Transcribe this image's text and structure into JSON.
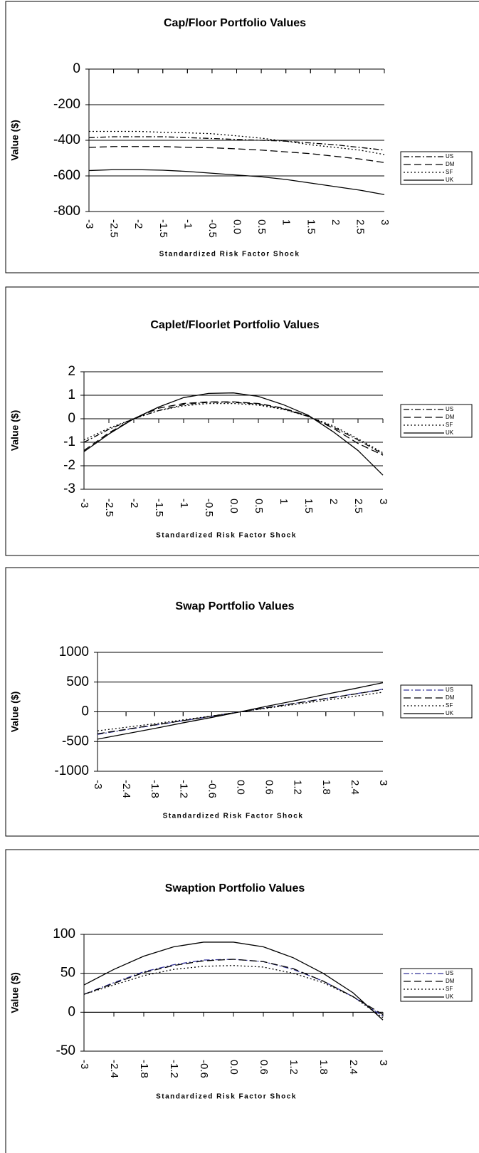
{
  "chart_data": [
    {
      "type": "line",
      "title": "Cap/Floor Portfolio Values",
      "x_label": "Standardized Risk Factor Shock",
      "y_label": "Value ($)",
      "x": [
        -3,
        -2.5,
        -2,
        -1.5,
        -1,
        -0.5,
        0,
        0.5,
        1,
        1.5,
        2,
        2.5,
        3
      ],
      "xlim": [
        -3,
        3
      ],
      "xticks": [
        -3,
        -2.5,
        -2,
        -1.5,
        -1,
        -0.5,
        {
          "value": 0,
          "label": "0.0"
        },
        0.5,
        1,
        1.5,
        2,
        2.5,
        3
      ],
      "ylim": [
        -800,
        0
      ],
      "yticks": [
        -800,
        -600,
        -400,
        -200,
        0
      ],
      "grid": true,
      "legend": "right",
      "series": [
        {
          "name": "US",
          "color": "#000000",
          "dash": "dashdot",
          "values": [
            -385,
            -380,
            -380,
            -380,
            -385,
            -390,
            -395,
            -400,
            -405,
            -415,
            -425,
            -440,
            -455
          ]
        },
        {
          "name": "DM",
          "color": "#000000",
          "dash": "dashed",
          "values": [
            -440,
            -435,
            -435,
            -435,
            -440,
            -442,
            -448,
            -455,
            -465,
            -475,
            -490,
            -505,
            -525
          ]
        },
        {
          "name": "SF",
          "color": "#000000",
          "dash": "dotted",
          "values": [
            -350,
            -350,
            -350,
            -355,
            -358,
            -363,
            -375,
            -388,
            -405,
            -425,
            -440,
            -455,
            -480
          ]
        },
        {
          "name": "UK",
          "color": "#000000",
          "dash": "solid",
          "values": [
            -570,
            -565,
            -565,
            -568,
            -575,
            -585,
            -595,
            -605,
            -620,
            -640,
            -660,
            -680,
            -705
          ]
        }
      ]
    },
    {
      "type": "line",
      "title": "Caplet/Floorlet Portfolio Values",
      "x_label": "Standardized Risk Factor Shock",
      "y_label": "Value ($)",
      "x": [
        -3,
        -2.5,
        -2,
        -1.5,
        -1,
        -0.5,
        0,
        0.5,
        1,
        1.5,
        2,
        2.5,
        3
      ],
      "xlim": [
        -3,
        3
      ],
      "xticks": [
        -3,
        -2.5,
        -2,
        -1.5,
        -1,
        -0.5,
        {
          "value": 0,
          "label": "0.0"
        },
        0.5,
        1,
        1.5,
        2,
        2.5,
        3
      ],
      "ylim": [
        -3,
        2
      ],
      "yticks": [
        -3,
        -2,
        -1,
        0,
        1,
        2
      ],
      "grid": true,
      "legend": "right",
      "series": [
        {
          "name": "US",
          "color": "#000000",
          "dash": "dashdot",
          "values": [
            -1.0,
            -0.45,
            0,
            0.35,
            0.6,
            0.7,
            0.7,
            0.62,
            0.42,
            0.1,
            -0.35,
            -0.9,
            -1.5
          ]
        },
        {
          "name": "DM",
          "color": "#000000",
          "dash": "dashed",
          "values": [
            -1.35,
            -0.6,
            0,
            0.45,
            0.65,
            0.72,
            0.72,
            0.65,
            0.45,
            0.12,
            -0.4,
            -1.05,
            -1.55
          ]
        },
        {
          "name": "SF",
          "color": "#000000",
          "dash": "dotted",
          "values": [
            -0.9,
            -0.4,
            0,
            0.35,
            0.55,
            0.65,
            0.65,
            0.58,
            0.4,
            0.1,
            -0.3,
            -0.85,
            -1.45
          ]
        },
        {
          "name": "UK",
          "color": "#000000",
          "dash": "solid",
          "values": [
            -1.4,
            -0.65,
            0,
            0.5,
            0.9,
            1.08,
            1.1,
            0.95,
            0.6,
            0.15,
            -0.55,
            -1.35,
            -2.4
          ]
        }
      ]
    },
    {
      "type": "line",
      "title": "Swap Portfolio Values",
      "x_label": "Standardized Risk Factor Shock",
      "y_label": "Value ($)",
      "x": [
        -3,
        -2.4,
        -1.8,
        -1.2,
        -0.6,
        0,
        0.6,
        1.2,
        1.8,
        2.4,
        3
      ],
      "xlim": [
        -3,
        3
      ],
      "xticks": [
        -3,
        -2.4,
        -1.8,
        -1.2,
        -0.6,
        {
          "value": 0,
          "label": "0.0"
        },
        0.6,
        1.2,
        1.8,
        2.4,
        3
      ],
      "ylim": [
        -1000,
        1000
      ],
      "yticks": [
        -1000,
        -500,
        0,
        500,
        1000
      ],
      "grid": true,
      "legend": "right",
      "series": [
        {
          "name": "US",
          "color": "#333399",
          "dash": "dashdot",
          "values": [
            -380,
            -300,
            -225,
            -150,
            -75,
            0,
            75,
            150,
            225,
            300,
            380
          ]
        },
        {
          "name": "DM",
          "color": "#000000",
          "dash": "dashed",
          "values": [
            -370,
            -295,
            -220,
            -148,
            -73,
            0,
            73,
            148,
            222,
            298,
            375
          ]
        },
        {
          "name": "SF",
          "color": "#000000",
          "dash": "dotted",
          "values": [
            -320,
            -260,
            -200,
            -135,
            -70,
            0,
            65,
            130,
            195,
            260,
            330
          ]
        },
        {
          "name": "UK",
          "color": "#000000",
          "dash": "solid",
          "values": [
            -460,
            -370,
            -280,
            -185,
            -95,
            0,
            100,
            195,
            295,
            390,
            490
          ]
        }
      ]
    },
    {
      "type": "line",
      "title": "Swaption Portfolio Values",
      "x_label": "Standardized Risk Factor Shock",
      "y_label": "Value ($)",
      "x": [
        -3,
        -2.4,
        -1.8,
        -1.2,
        -0.6,
        0,
        0.6,
        1.2,
        1.8,
        2.4,
        3
      ],
      "xlim": [
        -3,
        3
      ],
      "xticks": [
        -3,
        -2.4,
        -1.8,
        -1.2,
        -0.6,
        {
          "value": 0,
          "label": "0.0"
        },
        0.6,
        1.2,
        1.8,
        2.4,
        3
      ],
      "ylim": [
        -50,
        100
      ],
      "yticks": [
        -50,
        0,
        50,
        100
      ],
      "grid": true,
      "legend": "right",
      "series": [
        {
          "name": "US",
          "color": "#333399",
          "dash": "dashdot",
          "values": [
            23,
            38,
            52,
            61,
            67,
            68,
            65,
            55,
            40,
            20,
            -5
          ]
        },
        {
          "name": "DM",
          "color": "#000000",
          "dash": "dashed",
          "values": [
            23,
            37,
            51,
            60,
            66,
            68,
            65,
            56,
            40,
            20,
            -3
          ]
        },
        {
          "name": "SF",
          "color": "#000000",
          "dash": "dotted",
          "values": [
            23,
            35,
            47,
            55,
            59,
            60,
            58,
            50,
            38,
            20,
            -7
          ]
        },
        {
          "name": "UK",
          "color": "#000000",
          "dash": "solid",
          "values": [
            35,
            55,
            72,
            84,
            90,
            90,
            84,
            70,
            50,
            25,
            -10
          ]
        }
      ]
    }
  ]
}
